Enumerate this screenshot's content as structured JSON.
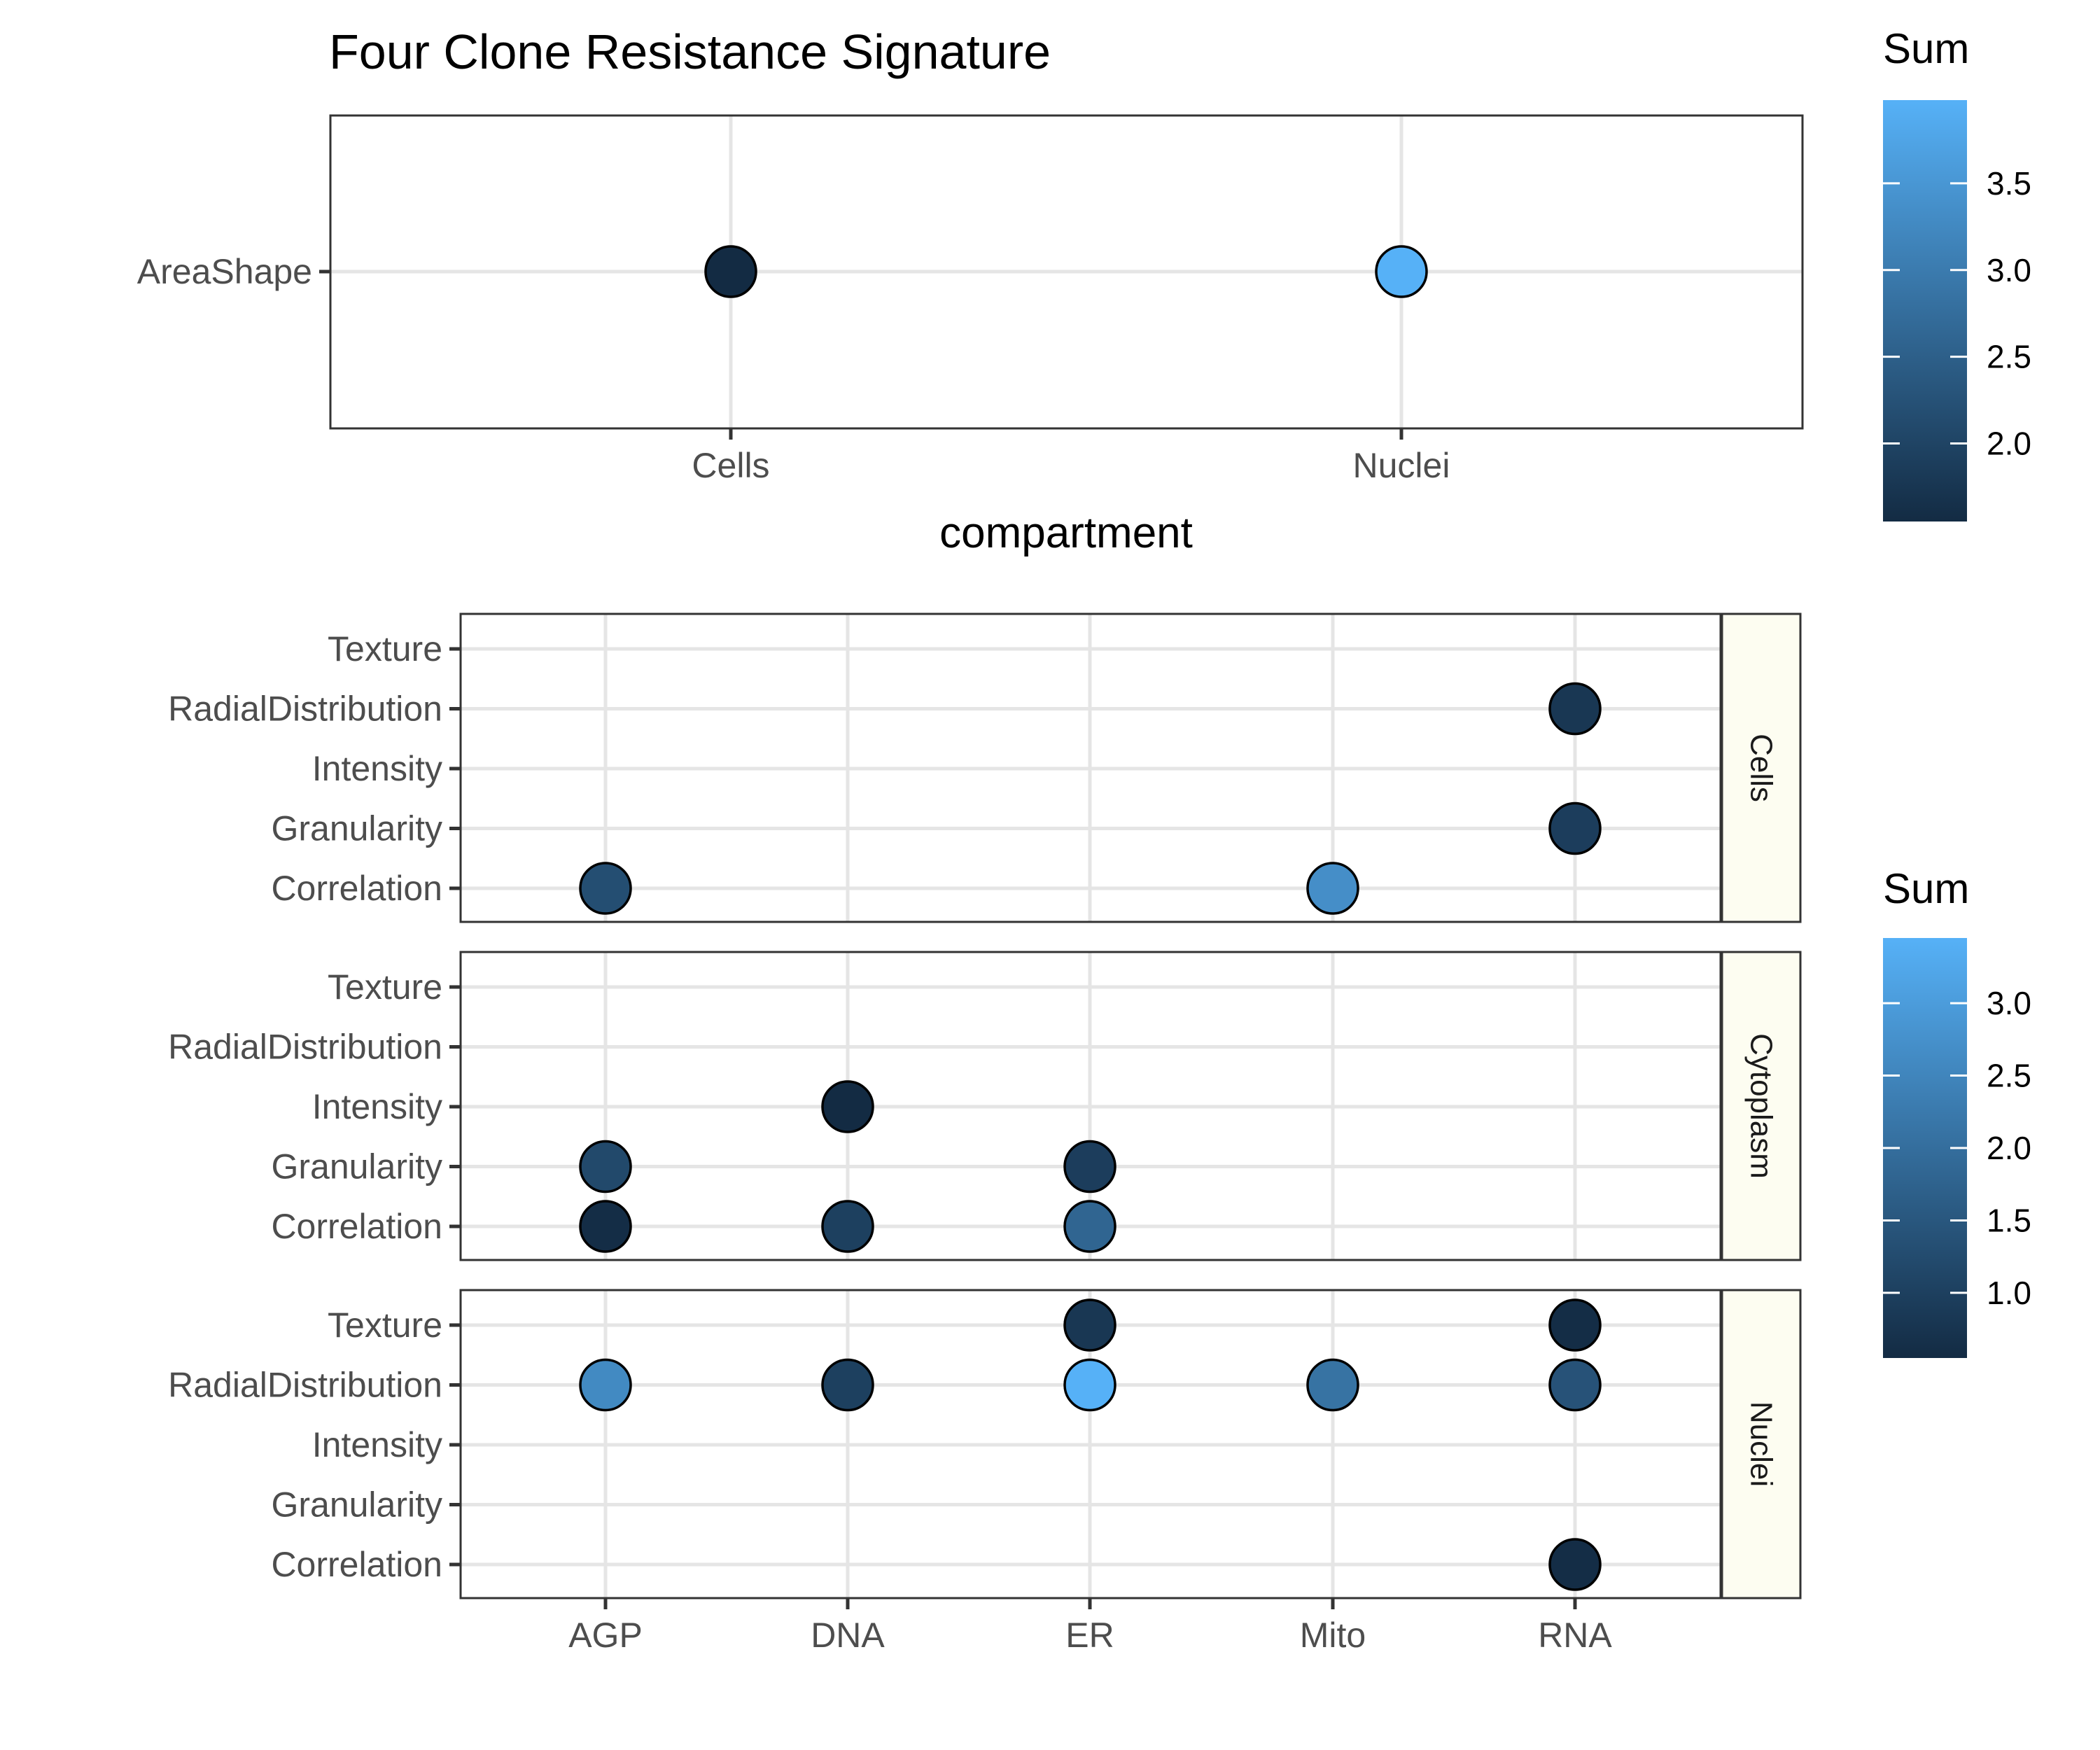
{
  "chart_data": [
    {
      "type": "scatter",
      "title": "Four Clone Resistance Signature",
      "xlabel": "compartment",
      "ylabel": "",
      "x_categories": [
        "Cells",
        "Nuclei"
      ],
      "y_categories": [
        "AreaShape"
      ],
      "points": [
        {
          "x": "Cells",
          "y": "AreaShape",
          "value": 1.55
        },
        {
          "x": "Nuclei",
          "y": "AreaShape",
          "value": 3.98
        }
      ],
      "grid": true,
      "legend": {
        "title": "Sum",
        "placement": "right",
        "range": [
          1.55,
          3.98
        ],
        "ticks": [
          2.0,
          2.5,
          3.0,
          3.5
        ],
        "tick_labels": [
          "2.0",
          "2.5",
          "3.0",
          "3.5"
        ]
      }
    },
    {
      "type": "scatter",
      "facets": [
        "Cells",
        "Cytoplasm",
        "Nuclei"
      ],
      "xlabel": "",
      "ylabel": "",
      "x_categories": [
        "AGP",
        "DNA",
        "ER",
        "Mito",
        "RNA"
      ],
      "y_categories": [
        "Correlation",
        "Granularity",
        "Intensity",
        "RadialDistribution",
        "Texture"
      ],
      "points": [
        {
          "facet": "Cells",
          "x": "AGP",
          "y": "Correlation",
          "value": 1.3
        },
        {
          "facet": "Cells",
          "x": "Mito",
          "y": "Correlation",
          "value": 2.7
        },
        {
          "facet": "Cells",
          "x": "RNA",
          "y": "Granularity",
          "value": 0.95
        },
        {
          "facet": "Cells",
          "x": "RNA",
          "y": "RadialDistribution",
          "value": 0.8
        },
        {
          "facet": "Cytoplasm",
          "x": "AGP",
          "y": "Correlation",
          "value": 0.6
        },
        {
          "facet": "Cytoplasm",
          "x": "DNA",
          "y": "Correlation",
          "value": 1.0
        },
        {
          "facet": "Cytoplasm",
          "x": "ER",
          "y": "Correlation",
          "value": 1.8
        },
        {
          "facet": "Cytoplasm",
          "x": "AGP",
          "y": "Granularity",
          "value": 1.2
        },
        {
          "facet": "Cytoplasm",
          "x": "ER",
          "y": "Granularity",
          "value": 0.95
        },
        {
          "facet": "Cytoplasm",
          "x": "DNA",
          "y": "Intensity",
          "value": 0.55
        },
        {
          "facet": "Nuclei",
          "x": "AGP",
          "y": "RadialDistribution",
          "value": 2.6
        },
        {
          "facet": "Nuclei",
          "x": "DNA",
          "y": "RadialDistribution",
          "value": 1.0
        },
        {
          "facet": "Nuclei",
          "x": "ER",
          "y": "RadialDistribution",
          "value": 3.45
        },
        {
          "facet": "Nuclei",
          "x": "Mito",
          "y": "RadialDistribution",
          "value": 2.1
        },
        {
          "facet": "Nuclei",
          "x": "RNA",
          "y": "RadialDistribution",
          "value": 1.4
        },
        {
          "facet": "Nuclei",
          "x": "ER",
          "y": "Texture",
          "value": 0.8
        },
        {
          "facet": "Nuclei",
          "x": "RNA",
          "y": "Texture",
          "value": 0.6
        },
        {
          "facet": "Nuclei",
          "x": "RNA",
          "y": "Correlation",
          "value": 0.6
        }
      ],
      "grid": true,
      "legend": {
        "title": "Sum",
        "placement": "right",
        "range": [
          0.55,
          3.45
        ],
        "ticks": [
          1.0,
          1.5,
          2.0,
          2.5,
          3.0
        ],
        "tick_labels": [
          "1.0",
          "1.5",
          "2.0",
          "2.5",
          "3.0"
        ]
      }
    }
  ],
  "colors": {
    "low": "#132b43",
    "high": "#56b1f7"
  }
}
